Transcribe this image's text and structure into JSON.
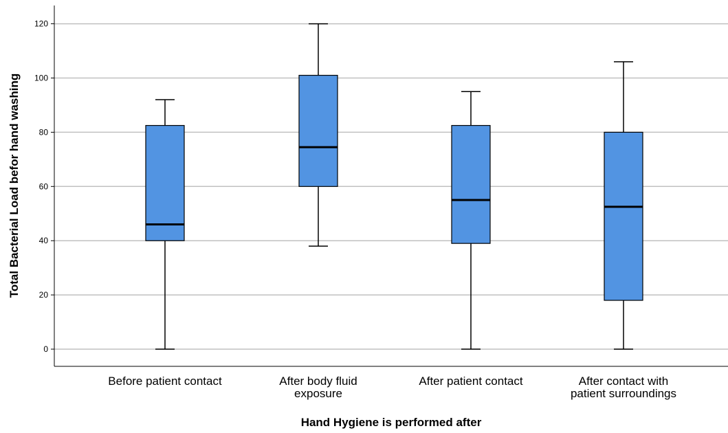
{
  "chart_data": {
    "type": "boxplot",
    "xlabel": "Hand Hygiene is performed after",
    "ylabel": "Total Bacterial Load befor hand washing",
    "ylim": [
      -6,
      126
    ],
    "yticks": [
      0,
      20,
      40,
      60,
      80,
      100,
      120
    ],
    "grid": true,
    "box_color": "#5294e2",
    "categories": [
      [
        "Before patient contact"
      ],
      [
        "After body fluid",
        "exposure"
      ],
      [
        "After patient contact"
      ],
      [
        "After contact with",
        "patient surroundings"
      ]
    ],
    "boxes": [
      {
        "min": 0,
        "q1": 40,
        "median": 46,
        "q3": 82.5,
        "max": 92
      },
      {
        "min": 38,
        "q1": 60,
        "median": 74.5,
        "q3": 101,
        "max": 120
      },
      {
        "min": 0,
        "q1": 39,
        "median": 55,
        "q3": 82.5,
        "max": 95
      },
      {
        "min": 0,
        "q1": 18,
        "median": 52.5,
        "q3": 80,
        "max": 106
      }
    ]
  }
}
